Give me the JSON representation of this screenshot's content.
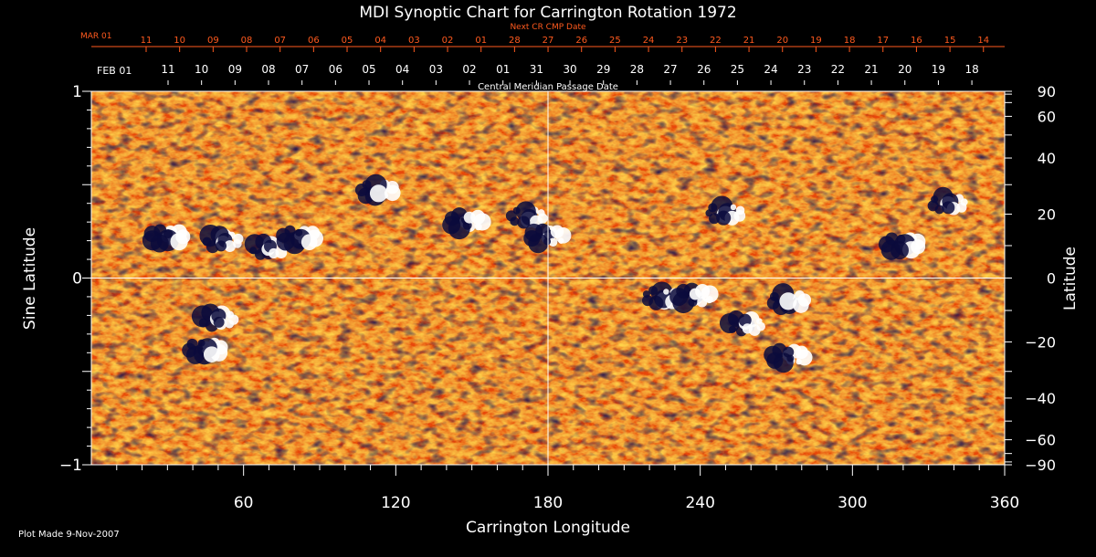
{
  "chart_data": {
    "type": "heatmap",
    "title": "MDI Synoptic Chart for Carrington Rotation 1972",
    "xlabel": "Carrington Longitude",
    "ylabel_left": "Sine Latitude",
    "ylabel_right": "Latitude",
    "xlim": [
      0,
      360
    ],
    "ylim_sine": [
      -1,
      1
    ],
    "x_ticks": [
      60,
      120,
      180,
      240,
      300,
      360
    ],
    "y_ticks_sine": [
      {
        "value": 1,
        "label": "1"
      },
      {
        "value": 0,
        "label": "0"
      },
      {
        "value": -1,
        "label": "−1"
      }
    ],
    "y_ticks_latitude": [
      90,
      60,
      40,
      20,
      0,
      -20,
      -40,
      -60,
      -90
    ],
    "crosshair": {
      "longitude": 180,
      "sine_latitude": 0
    },
    "cmp_axis": {
      "label": "Central Meridian Passage Date",
      "start_label": "FEB 01",
      "labels": [
        "11",
        "10",
        "09",
        "08",
        "07",
        "06",
        "05",
        "04",
        "03",
        "02",
        "01",
        "31",
        "30",
        "29",
        "28",
        "27",
        "26",
        "25",
        "24",
        "23",
        "22",
        "21",
        "20",
        "19",
        "18"
      ]
    },
    "next_cr_axis": {
      "label": "Next CR CMP Date",
      "start_label": "MAR 01",
      "labels": [
        "11",
        "10",
        "09",
        "08",
        "07",
        "06",
        "05",
        "04",
        "03",
        "02",
        "01",
        "28",
        "27",
        "26",
        "25",
        "24",
        "23",
        "22",
        "21",
        "20",
        "19",
        "18",
        "17",
        "16",
        "15",
        "14"
      ]
    },
    "colors": {
      "background": "#e8460f",
      "positive": "#ffffff",
      "positive_mid": "#ffd24a",
      "negative": "#0a0a3c",
      "axis_red": "#ff5a1e"
    },
    "active_regions": [
      {
        "lon": 113,
        "slat": 0.47,
        "polarity": "bipole"
      },
      {
        "lon": 70,
        "slat": 0.16,
        "polarity": "bipole"
      },
      {
        "lon": 82,
        "slat": 0.22,
        "polarity": "bipole"
      },
      {
        "lon": 52,
        "slat": 0.2,
        "polarity": "bipole"
      },
      {
        "lon": 30,
        "slat": 0.22,
        "polarity": "bipole"
      },
      {
        "lon": 172,
        "slat": 0.33,
        "polarity": "bipole"
      },
      {
        "lon": 180,
        "slat": 0.22,
        "polarity": "bipole"
      },
      {
        "lon": 225,
        "slat": -0.1,
        "polarity": "bipole"
      },
      {
        "lon": 238,
        "slat": -0.1,
        "polarity": "bipole"
      },
      {
        "lon": 275,
        "slat": -0.12,
        "polarity": "bipole"
      },
      {
        "lon": 258,
        "slat": -0.25,
        "polarity": "bipole"
      },
      {
        "lon": 45,
        "slat": -0.38,
        "polarity": "bipole"
      },
      {
        "lon": 50,
        "slat": -0.22,
        "polarity": "bipole"
      },
      {
        "lon": 320,
        "slat": 0.18,
        "polarity": "bipole"
      },
      {
        "lon": 338,
        "slat": 0.4,
        "polarity": "bipole"
      },
      {
        "lon": 275,
        "slat": -0.42,
        "polarity": "bipole"
      },
      {
        "lon": 250,
        "slat": 0.35,
        "polarity": "bipole"
      },
      {
        "lon": 148,
        "slat": 0.3,
        "polarity": "bipole"
      }
    ]
  },
  "footer": {
    "plot_made": "Plot Made  9-Nov-2007"
  }
}
